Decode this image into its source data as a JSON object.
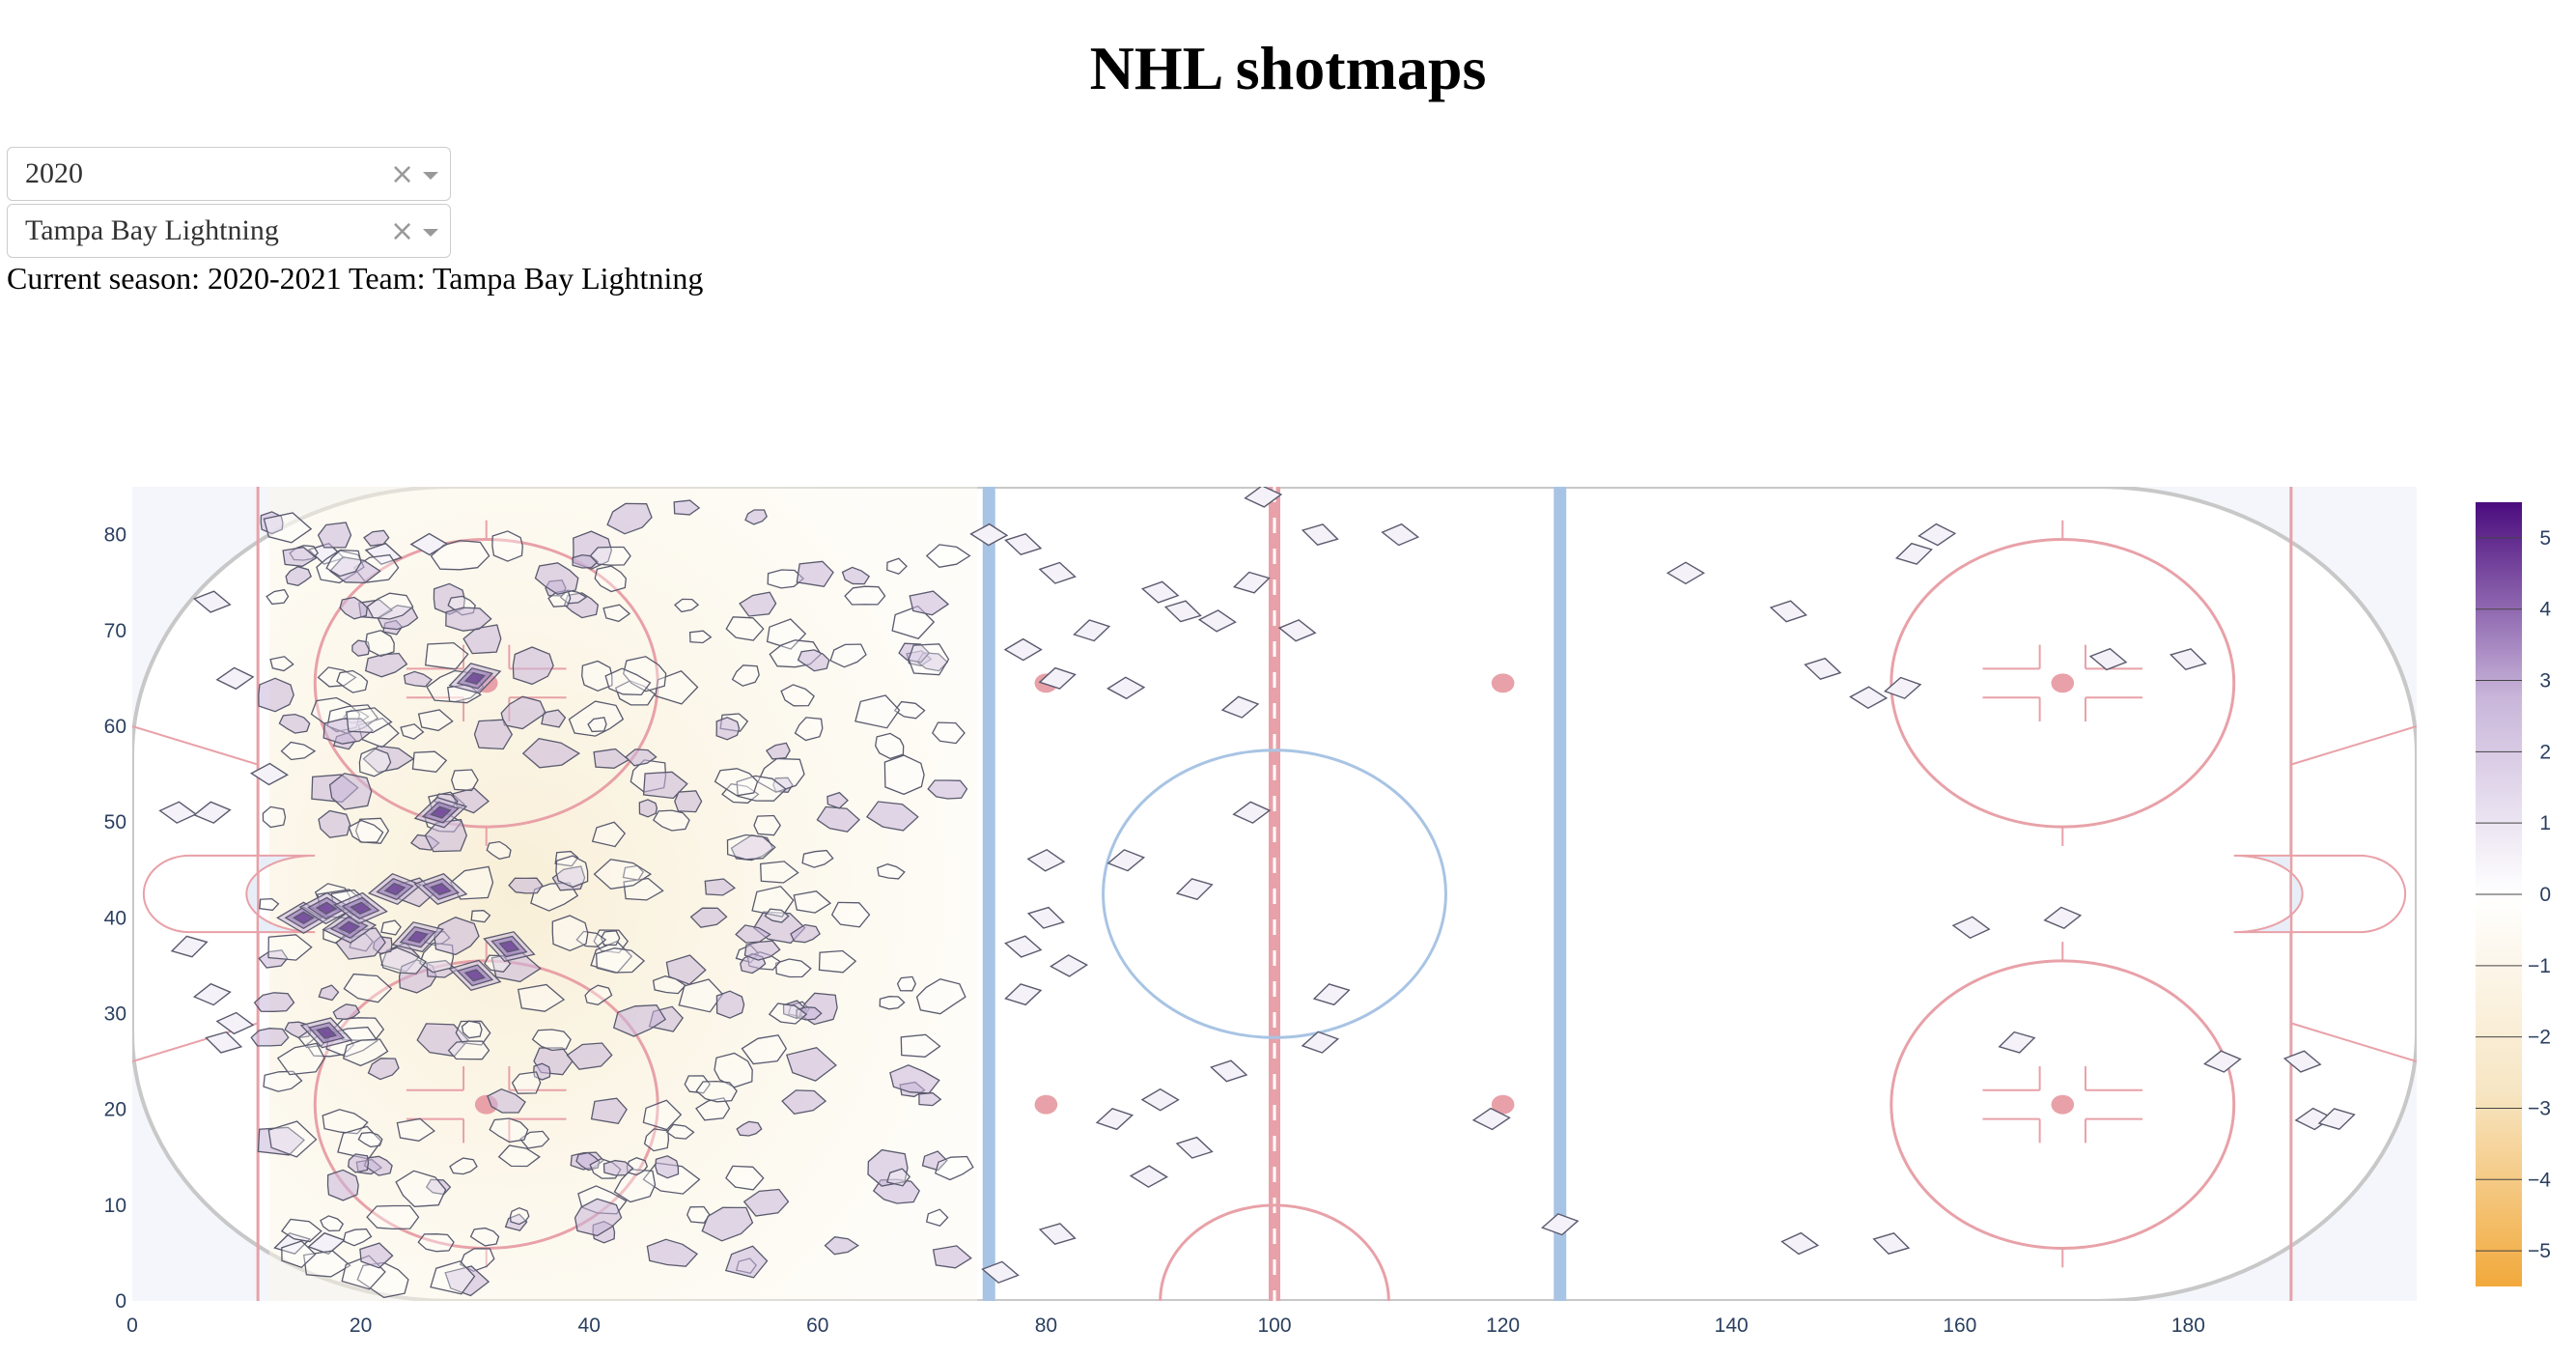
{
  "page": {
    "title": "NHL shotmaps"
  },
  "controls": {
    "season_select": {
      "value": "2020",
      "clear_icon": "×"
    },
    "team_select": {
      "value": "Tampa Bay Lightning",
      "clear_icon": "×"
    }
  },
  "status_text": "Current season: 2020-2021 Team: Tampa Bay Lightning",
  "chart_data": {
    "type": "contour",
    "title": "",
    "xlabel": "",
    "ylabel": "",
    "xlim": [
      0,
      200
    ],
    "ylim": [
      0,
      85
    ],
    "x_ticks": [
      0,
      20,
      40,
      60,
      80,
      100,
      120,
      140,
      160,
      180
    ],
    "y_ticks": [
      0,
      10,
      20,
      30,
      40,
      50,
      60,
      70,
      80
    ],
    "grid": false,
    "colorbar": {
      "range": [
        -5.5,
        5.5
      ],
      "ticks": [
        5,
        4,
        3,
        2,
        1,
        0,
        -1,
        -2,
        -3,
        -4,
        -5
      ],
      "colors": [
        "#f2a93b",
        "#f7e6c4",
        "#ffffff",
        "#c9b6da",
        "#4b0c7e"
      ]
    },
    "rink_colors": {
      "red_line": "#e8a1a8",
      "blue_line": "#a8c4e4",
      "board": "#c8c8c8"
    },
    "shot_clusters_right_zone": [
      [
        136,
        76
      ],
      [
        145,
        72
      ],
      [
        148,
        66
      ],
      [
        152,
        63
      ],
      [
        155,
        64
      ],
      [
        156,
        78
      ],
      [
        158,
        80
      ],
      [
        173,
        67
      ],
      [
        180,
        67
      ],
      [
        161,
        39
      ],
      [
        169,
        40
      ],
      [
        165,
        27
      ],
      [
        183,
        25
      ],
      [
        146,
        6
      ],
      [
        154,
        6
      ],
      [
        190,
        25
      ],
      [
        191,
        19
      ],
      [
        193,
        19
      ],
      [
        125,
        8
      ]
    ],
    "shot_clusters_neutral_zone": [
      [
        75,
        80
      ],
      [
        78,
        79
      ],
      [
        81,
        76
      ],
      [
        78,
        68
      ],
      [
        81,
        65
      ],
      [
        84,
        70
      ],
      [
        87,
        64
      ],
      [
        90,
        74
      ],
      [
        92,
        72
      ],
      [
        95,
        71
      ],
      [
        97,
        62
      ],
      [
        98,
        75
      ],
      [
        99,
        84
      ],
      [
        102,
        70
      ],
      [
        104,
        80
      ],
      [
        111,
        80
      ],
      [
        98,
        51
      ],
      [
        93,
        43
      ],
      [
        87,
        46
      ],
      [
        80,
        46
      ],
      [
        80,
        40
      ],
      [
        78,
        37
      ],
      [
        82,
        35
      ],
      [
        78,
        32
      ],
      [
        86,
        19
      ],
      [
        90,
        21
      ],
      [
        96,
        24
      ],
      [
        93,
        16
      ],
      [
        89,
        13
      ],
      [
        104,
        27
      ],
      [
        105,
        32
      ],
      [
        119,
        19
      ],
      [
        76,
        3
      ],
      [
        81,
        7
      ]
    ],
    "shot_clusters_left_zone_edge": [
      [
        4,
        51
      ],
      [
        7,
        51
      ],
      [
        5,
        37
      ],
      [
        7,
        32
      ],
      [
        9,
        29
      ],
      [
        8,
        27
      ],
      [
        7,
        73
      ],
      [
        9,
        65
      ],
      [
        14,
        6
      ],
      [
        17,
        6
      ],
      [
        12,
        55
      ],
      [
        17,
        78
      ],
      [
        22,
        78
      ],
      [
        26,
        79
      ]
    ],
    "hotspots": [
      [
        15,
        40
      ],
      [
        17,
        41
      ],
      [
        19,
        39
      ],
      [
        20,
        41
      ],
      [
        23,
        43
      ],
      [
        27,
        43
      ],
      [
        27,
        51
      ],
      [
        30,
        34
      ],
      [
        30,
        65
      ],
      [
        17,
        28
      ],
      [
        25,
        38
      ],
      [
        33,
        37
      ]
    ]
  }
}
